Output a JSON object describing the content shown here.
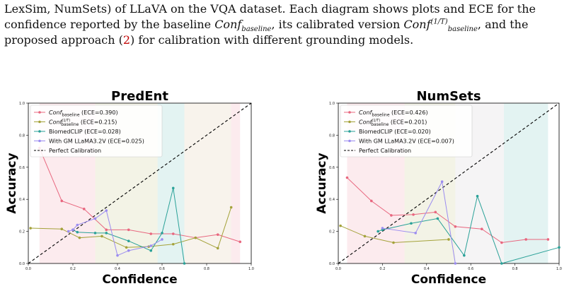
{
  "caption": {
    "line1": "LexSim, NumSets) of LLaVA on the VQA dataset.  Each diagram shows plots and ECE for the",
    "line2_a": "confidence reported by the baseline ",
    "conf_baseline": "Conf",
    "baseline_sub": "baseline",
    "line2_b": ", its calibrated version ",
    "exp": "(1/T)",
    "line2_c": ", and the",
    "line3_a": "proposed approach (",
    "ref": "2",
    "line3_b": ") for calibration with different grounding models."
  },
  "chart_data": [
    {
      "type": "line",
      "title": "PredEnt",
      "xlabel": "Confidence",
      "ylabel": "Accuracy",
      "xlim": [
        0,
        1
      ],
      "ylim": [
        0,
        1
      ],
      "xticks": [
        "0.0",
        "0.2",
        "0.4",
        "0.6",
        "0.8",
        "1.0"
      ],
      "yticks": [
        "0.0",
        "0.2",
        "0.4",
        "0.6",
        "0.8",
        "1.0"
      ],
      "grid": false,
      "legend_position": "top-left",
      "legend": [
        {
          "main": "Conf",
          "sub": "baseline",
          "sup": "",
          "tail": " (ECE=0.390)"
        },
        {
          "main": "Conf",
          "sub": "baseline",
          "sup": "(1/T)",
          "tail": " (ECE=0.215)"
        },
        {
          "main": "BiomedCLIP (ECE=0.028)",
          "sub": "",
          "sup": "",
          "tail": ""
        },
        {
          "main": "With GM LLaMA3.2V (ECE=0.025)",
          "sub": "",
          "sup": "",
          "tail": ""
        },
        {
          "main": "Perfect Calibration",
          "sub": "",
          "sup": "",
          "tail": ""
        }
      ],
      "series": [
        {
          "color": "#e8677f",
          "x": [
            0.05,
            0.15,
            0.25,
            0.35,
            0.45,
            0.55,
            0.65,
            0.75,
            0.85,
            0.95
          ],
          "y": [
            0.72,
            0.39,
            0.34,
            0.21,
            0.21,
            0.185,
            0.185,
            0.16,
            0.18,
            0.135
          ]
        },
        {
          "color": "#a4a23a",
          "x": [
            0.01,
            0.15,
            0.23,
            0.33,
            0.44,
            0.54,
            0.65,
            0.75,
            0.85,
            0.91
          ],
          "y": [
            0.22,
            0.215,
            0.16,
            0.17,
            0.1,
            0.105,
            0.12,
            0.16,
            0.095,
            0.35
          ]
        },
        {
          "color": "#2aa198",
          "x": [
            0.2,
            0.22,
            0.3,
            0.35,
            0.45,
            0.55,
            0.6,
            0.65,
            0.7
          ],
          "y": [
            0.21,
            0.195,
            0.19,
            0.19,
            0.14,
            0.08,
            0.19,
            0.47,
            0.0
          ]
        },
        {
          "color": "#9b8cf0",
          "x": [
            0.18,
            0.2,
            0.22,
            0.3,
            0.35,
            0.4,
            0.45,
            0.55,
            0.6
          ],
          "y": [
            0.2,
            0.21,
            0.24,
            0.28,
            0.33,
            0.05,
            0.08,
            0.11,
            0.15
          ]
        }
      ],
      "bands": [
        {
          "color": "#e8677f",
          "from": 0.05,
          "to": 0.3
        },
        {
          "color": "#a4a23a",
          "from": 0.3,
          "to": 0.58
        },
        {
          "color": "#2aa198",
          "from": 0.58,
          "to": 0.7
        },
        {
          "color": "#c8a070",
          "from": 0.7,
          "to": 0.91
        },
        {
          "color": "#e8677f",
          "from": 0.91,
          "to": 0.95
        }
      ]
    },
    {
      "type": "line",
      "title": "NumSets",
      "xlabel": "Confidence",
      "ylabel": "Accuracy",
      "xlim": [
        0,
        1
      ],
      "ylim": [
        0,
        1
      ],
      "xticks": [
        "0.0",
        "0.2",
        "0.4",
        "0.6",
        "0.8",
        "1.0"
      ],
      "yticks": [
        "0.0",
        "0.2",
        "0.4",
        "0.6",
        "0.8",
        "1.0"
      ],
      "grid": false,
      "legend_position": "top-left",
      "legend": [
        {
          "main": "Conf",
          "sub": "baseline",
          "sup": "",
          "tail": " (ECE=0.426)"
        },
        {
          "main": "Conf",
          "sub": "baseline",
          "sup": "(1/T)",
          "tail": " (ECE=0.201)"
        },
        {
          "main": "BiomedCLIP (ECE=0.020)",
          "sub": "",
          "sup": "",
          "tail": ""
        },
        {
          "main": "With GM LLaMA3.2V (ECE=0.007)",
          "sub": "",
          "sup": "",
          "tail": ""
        },
        {
          "main": "Perfect Calibration",
          "sub": "",
          "sup": "",
          "tail": ""
        }
      ],
      "series": [
        {
          "color": "#e8677f",
          "x": [
            0.04,
            0.15,
            0.24,
            0.34,
            0.44,
            0.53,
            0.65,
            0.74,
            0.85,
            0.95
          ],
          "y": [
            0.535,
            0.39,
            0.3,
            0.305,
            0.32,
            0.23,
            0.215,
            0.13,
            0.15,
            0.15
          ]
        },
        {
          "color": "#a4a23a",
          "x": [
            0.01,
            0.12,
            0.25,
            0.5
          ],
          "y": [
            0.235,
            0.17,
            0.13,
            0.15
          ]
        },
        {
          "color": "#2aa198",
          "x": [
            0.18,
            0.2,
            0.33,
            0.45,
            0.57,
            0.63,
            0.74,
            1.0
          ],
          "y": [
            0.2,
            0.21,
            0.25,
            0.28,
            0.05,
            0.42,
            0.0,
            0.1
          ]
        },
        {
          "color": "#9b8cf0",
          "x": [
            0.2,
            0.35,
            0.47,
            0.53
          ],
          "y": [
            0.22,
            0.19,
            0.51,
            0.0
          ]
        }
      ],
      "bands": [
        {
          "color": "#e8677f",
          "from": 0.04,
          "to": 0.3
        },
        {
          "color": "#a4a23a",
          "from": 0.3,
          "to": 0.53
        },
        {
          "color": "#b0a8b0",
          "from": 0.53,
          "to": 0.75
        },
        {
          "color": "#2aa198",
          "from": 0.75,
          "to": 0.95
        }
      ]
    }
  ]
}
